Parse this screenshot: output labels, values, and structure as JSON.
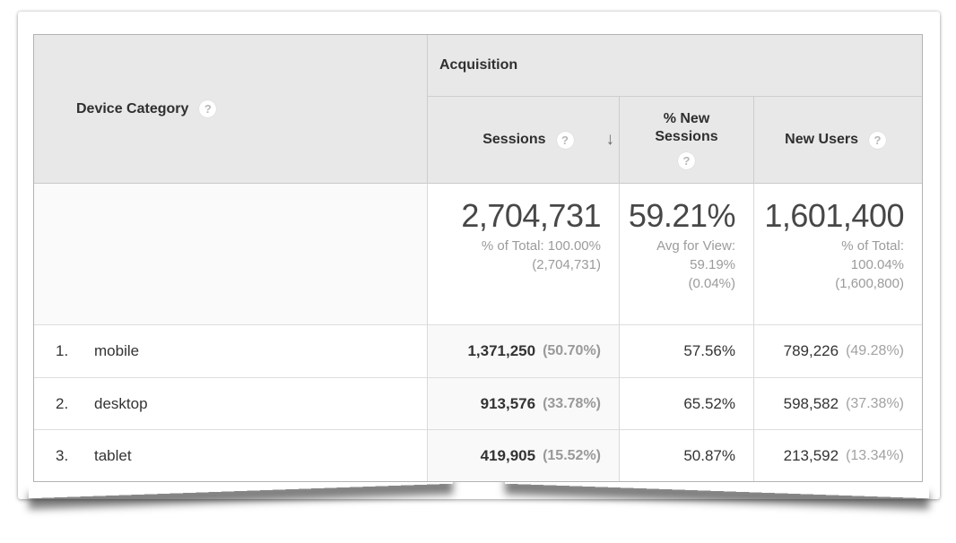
{
  "icons": {
    "help": "?",
    "sort_desc": "↓"
  },
  "colors": {
    "header_bg": "#e8e8e8",
    "sorted_column_bg": "#f9f9f9",
    "text_dark": "#333333",
    "text_gray": "#9b9b9b",
    "border_outer": "#b3b3b3"
  },
  "table": {
    "header": {
      "dimension": "Device Category",
      "group": "Acquisition",
      "metrics": [
        "Sessions",
        "% New Sessions",
        "New Users"
      ]
    },
    "summary": {
      "sessions": {
        "value": "2,704,731",
        "line1": "% of Total: 100.00%",
        "line2": "(2,704,731)"
      },
      "new_sessions": {
        "value": "59.21%",
        "line1": "Avg for View:",
        "line2": "59.19%",
        "line3": "(0.04%)"
      },
      "new_users": {
        "value": "1,601,400",
        "line1": "% of Total:",
        "line2": "100.04%",
        "line3": "(1,600,800)"
      }
    },
    "rows": [
      {
        "rank": "1.",
        "device": "mobile",
        "sessions": "1,371,250",
        "sessions_pct": "(50.70%)",
        "new_sessions": "57.56%",
        "new_users": "789,226",
        "new_users_pct": "(49.28%)"
      },
      {
        "rank": "2.",
        "device": "desktop",
        "sessions": "913,576",
        "sessions_pct": "(33.78%)",
        "new_sessions": "65.52%",
        "new_users": "598,582",
        "new_users_pct": "(37.38%)"
      },
      {
        "rank": "3.",
        "device": "tablet",
        "sessions": "419,905",
        "sessions_pct": "(15.52%)",
        "new_sessions": "50.87%",
        "new_users": "213,592",
        "new_users_pct": "(13.34%)"
      }
    ]
  }
}
